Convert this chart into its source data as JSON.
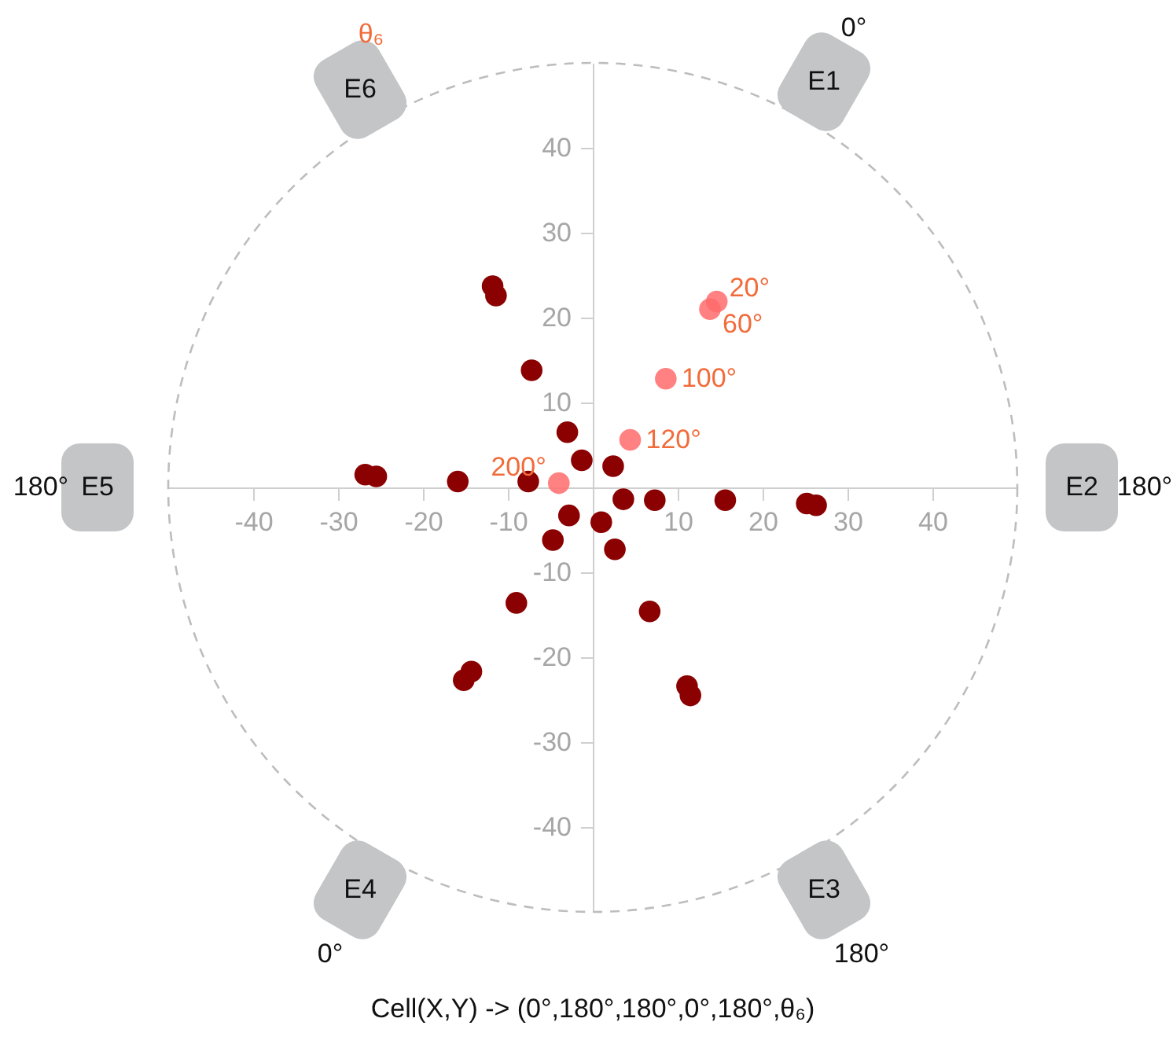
{
  "chart_data": {
    "type": "scatter",
    "xlabel": "Cell(X,Y) -> (0°,180°,180°,0°,180°,θ₆)",
    "xlim": [
      -50,
      50
    ],
    "ylim": [
      -50,
      50
    ],
    "xticks": [
      -40,
      -30,
      -20,
      -10,
      10,
      20,
      30,
      40
    ],
    "yticks": [
      -40,
      -30,
      -20,
      -10,
      10,
      20,
      30,
      40
    ],
    "grid": false,
    "series": [
      {
        "color": "#8b0000",
        "x": [
          -11.8,
          -11.4,
          -7.2,
          -3.0,
          -1.3,
          2.4,
          -26.8,
          -25.5,
          -15.9,
          -7.6,
          3.6,
          7.3,
          15.6,
          -2.8,
          1.0,
          -4.7,
          2.6,
          -9.0,
          6.7,
          -14.3,
          -15.2,
          11.1,
          11.5,
          25.2,
          26.3
        ],
        "values": [
          23.7,
          22.6,
          13.8,
          6.5,
          3.2,
          2.5,
          1.5,
          1.3,
          0.7,
          0.7,
          -1.4,
          -1.5,
          -1.5,
          -3.3,
          -4.1,
          -6.2,
          -7.3,
          -13.6,
          -14.6,
          -21.7,
          -22.7,
          -23.4,
          -24.5,
          -1.9,
          -2.1
        ]
      },
      {
        "color": "#ff6b6b",
        "x": [
          14.6,
          13.8,
          8.6,
          4.4,
          -4.0
        ],
        "values": [
          21.9,
          21.0,
          12.8,
          5.6,
          0.5
        ]
      }
    ],
    "annotations": [
      "E1",
      "E2",
      "E3",
      "E4",
      "E5",
      "E6",
      "0°",
      "180°",
      "180°",
      "0°",
      "180°",
      "θ₆",
      {
        "text": "20°",
        "x": 14.6,
        "y": 21.9
      },
      {
        "text": "60°",
        "x": 13.8,
        "y": 21.0
      },
      {
        "text": "100°",
        "x": 8.6,
        "y": 12.8
      },
      {
        "text": "120°",
        "x": 4.4,
        "y": 5.6
      },
      {
        "text": "200°",
        "x": -4.0,
        "y": 0.5
      }
    ]
  }
}
